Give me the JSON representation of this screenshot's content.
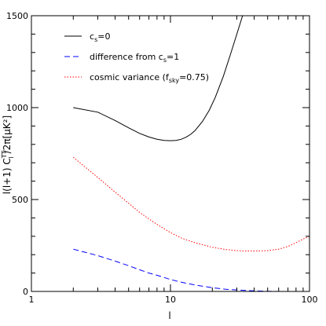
{
  "chart_data": {
    "type": "line",
    "xscale": "log",
    "xlim": [
      1,
      100
    ],
    "ylim": [
      0,
      1500
    ],
    "xticks": [
      1,
      10,
      100
    ],
    "yticks": [
      0,
      500,
      1000,
      1500
    ],
    "xtick_labels": [
      "1",
      "10",
      "100"
    ],
    "ytick_labels": [
      "0",
      "500",
      "1000",
      "1500"
    ],
    "xlabel": "l",
    "ylabel": {
      "prefix": "l(l+1) C",
      "sub": "l",
      "sup": "TT",
      "suffix": "/2π[μK²]"
    },
    "legend_position": "top-left",
    "series": [
      {
        "name": "c_s=0",
        "legend": {
          "pre": "c",
          "sub": "s",
          "post": "=0"
        },
        "color": "#000000",
        "dash": "solid",
        "x": [
          2,
          3,
          4,
          5,
          6,
          7,
          8,
          9,
          10,
          11,
          12,
          13,
          14,
          15,
          17,
          19,
          21,
          24,
          27,
          30,
          33,
          36,
          40
        ],
        "y": [
          1000,
          975,
          930,
          890,
          860,
          840,
          828,
          822,
          820,
          822,
          828,
          840,
          855,
          875,
          925,
          985,
          1055,
          1170,
          1290,
          1400,
          1500,
          1600,
          1750
        ]
      },
      {
        "name": "difference from c_s=1",
        "legend": {
          "pre": "difference from c",
          "sub": "s",
          "post": "=1"
        },
        "color": "#0000ff",
        "dash": "dashed",
        "x": [
          2,
          3,
          4,
          5,
          6,
          7,
          8,
          10,
          12,
          15,
          20,
          25,
          30,
          40,
          50,
          60,
          70,
          80,
          90,
          100
        ],
        "y": [
          230,
          195,
          165,
          140,
          118,
          100,
          88,
          65,
          50,
          35,
          20,
          12,
          8,
          3,
          1,
          0,
          0,
          0,
          0,
          0
        ]
      },
      {
        "name": "cosmic variance (f_sky=0.75)",
        "legend": {
          "pre": "cosmic variance (f",
          "sub": "sky",
          "post": "=0.75)"
        },
        "color": "#ff0000",
        "dash": "dotted",
        "x": [
          2,
          3,
          4,
          5,
          6,
          7,
          8,
          10,
          12,
          15,
          20,
          25,
          30,
          35,
          40,
          50,
          60,
          70,
          80,
          90,
          100
        ],
        "y": [
          730,
          620,
          540,
          480,
          430,
          395,
          365,
          320,
          290,
          265,
          240,
          228,
          222,
          220,
          220,
          222,
          230,
          245,
          265,
          285,
          300
        ]
      }
    ]
  }
}
